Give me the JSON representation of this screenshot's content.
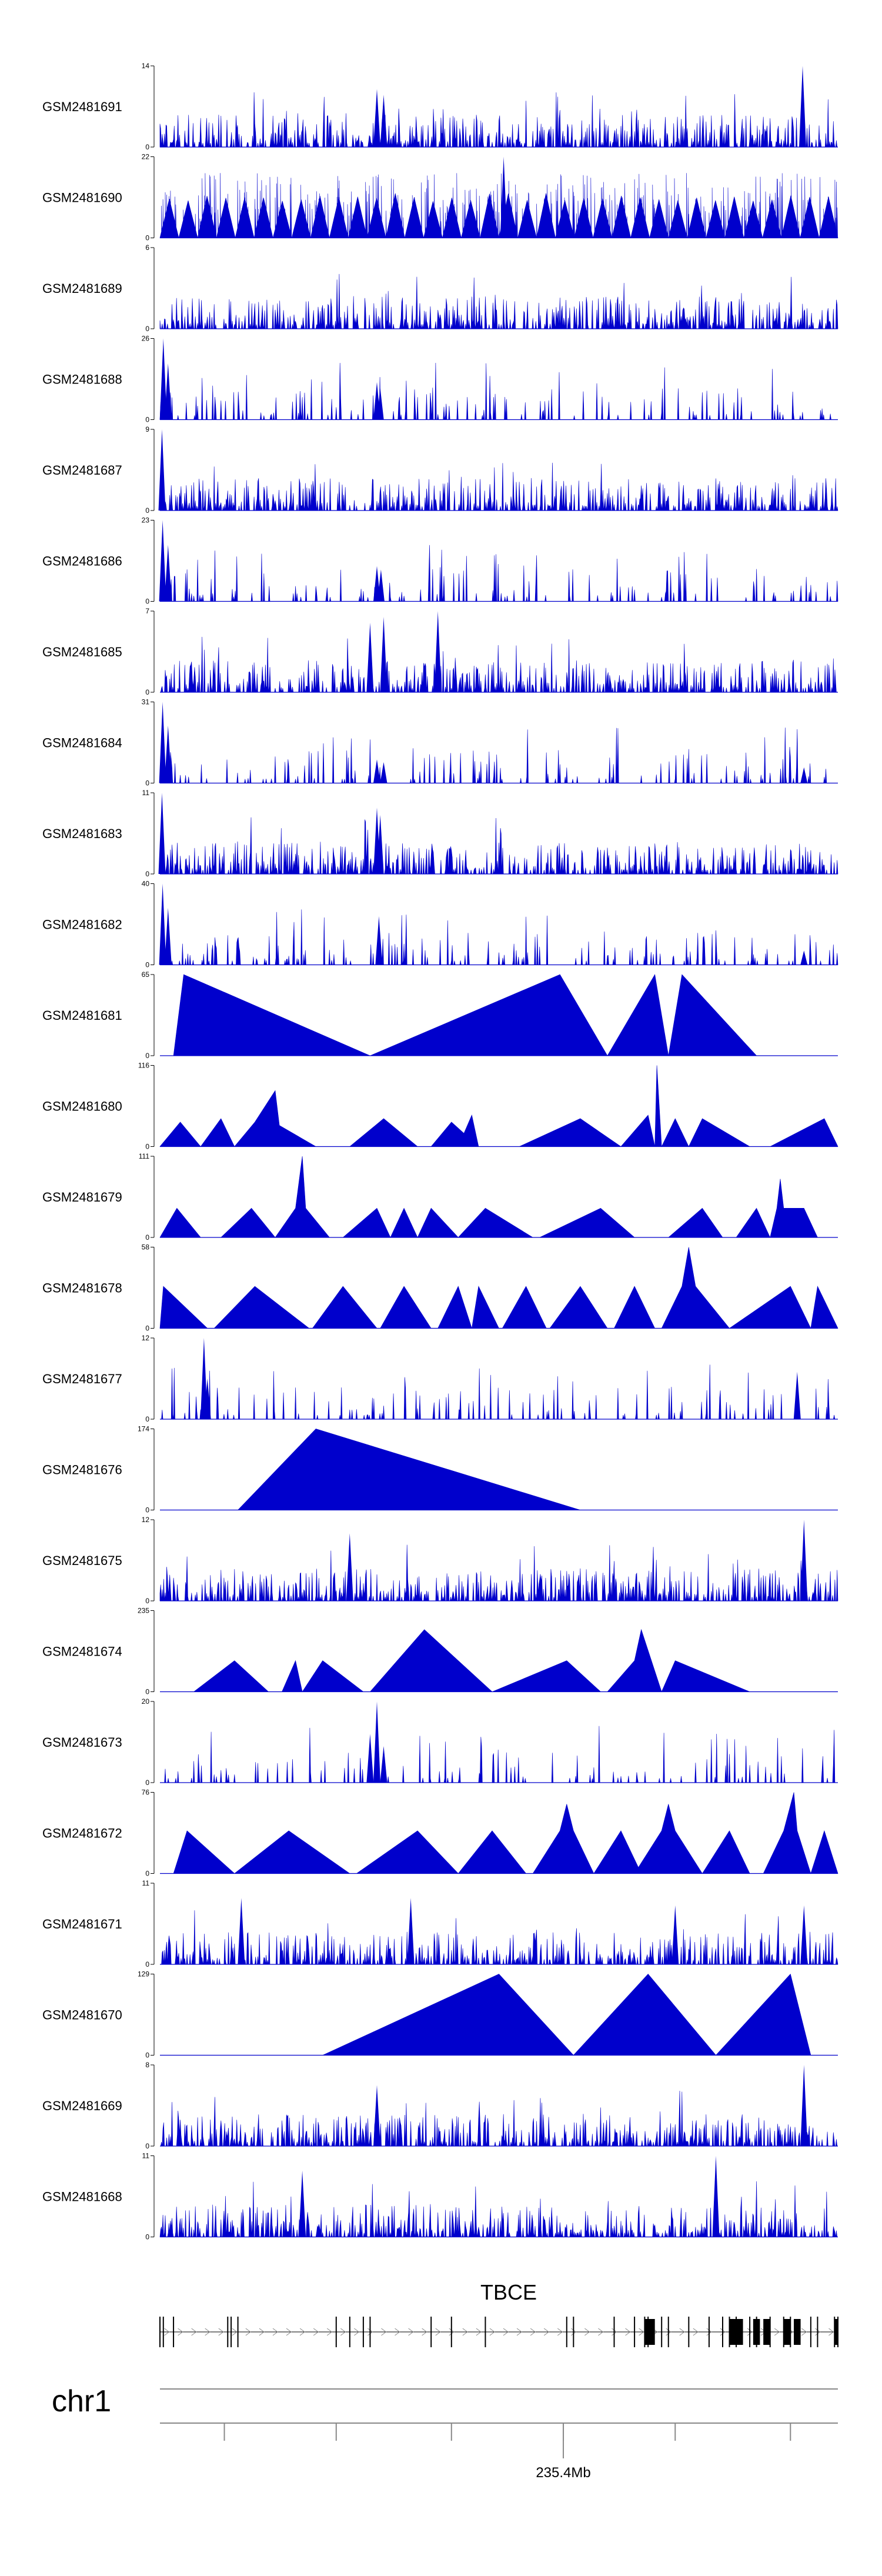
{
  "chart_data": {
    "type": "area",
    "title": "",
    "colors": {
      "signal": "#0000cc",
      "axis": "#000000",
      "gene": "#000000"
    },
    "tracks": [
      {
        "name": "GSM2481691",
        "max": 14,
        "min": 0,
        "pattern": "dense",
        "peaks": [
          [
            0.32,
            10
          ],
          [
            0.33,
            9
          ],
          [
            0.948,
            14
          ]
        ]
      },
      {
        "name": "GSM2481690",
        "max": 22,
        "min": 0,
        "pattern": "triangles",
        "peaks": [
          [
            0.507,
            22
          ]
        ]
      },
      {
        "name": "GSM2481689",
        "max": 6,
        "min": 0,
        "pattern": "dense",
        "peaks": []
      },
      {
        "name": "GSM2481688",
        "max": 26,
        "min": 0,
        "pattern": "sparse",
        "peaks": [
          [
            0.005,
            26
          ],
          [
            0.012,
            18
          ],
          [
            0.32,
            12
          ],
          [
            0.325,
            10
          ]
        ]
      },
      {
        "name": "GSM2481687",
        "max": 9,
        "min": 0,
        "pattern": "dense",
        "peaks": [
          [
            0.003,
            9
          ]
        ]
      },
      {
        "name": "GSM2481686",
        "max": 23,
        "min": 0,
        "pattern": "sparse",
        "peaks": [
          [
            0.004,
            23
          ],
          [
            0.012,
            16
          ],
          [
            0.32,
            10
          ],
          [
            0.326,
            9
          ]
        ]
      },
      {
        "name": "GSM2481685",
        "max": 7,
        "min": 0,
        "pattern": "dense",
        "peaks": [
          [
            0.31,
            6
          ],
          [
            0.33,
            6.5
          ],
          [
            0.41,
            7
          ]
        ]
      },
      {
        "name": "GSM2481684",
        "max": 31,
        "min": 0,
        "pattern": "sparse",
        "peaks": [
          [
            0.004,
            31
          ],
          [
            0.012,
            22
          ],
          [
            0.32,
            9
          ],
          [
            0.33,
            8
          ],
          [
            0.95,
            6
          ]
        ]
      },
      {
        "name": "GSM2481683",
        "max": 11,
        "min": 0,
        "pattern": "dense",
        "peaks": [
          [
            0.003,
            11
          ],
          [
            0.32,
            9
          ],
          [
            0.325,
            8
          ]
        ]
      },
      {
        "name": "GSM2481682",
        "max": 40,
        "min": 0,
        "pattern": "sparse",
        "peaks": [
          [
            0.004,
            40
          ],
          [
            0.012,
            28
          ],
          [
            0.323,
            24
          ],
          [
            0.95,
            7
          ]
        ]
      },
      {
        "name": "GSM2481681",
        "max": 65,
        "min": 0,
        "pattern": "poly",
        "points": [
          [
            0.0,
            0
          ],
          [
            0.02,
            0
          ],
          [
            0.035,
            65
          ],
          [
            0.31,
            0
          ],
          [
            0.59,
            65
          ],
          [
            0.66,
            0
          ],
          [
            0.73,
            65
          ],
          [
            0.75,
            0
          ],
          [
            0.77,
            65
          ],
          [
            0.88,
            0
          ]
        ]
      },
      {
        "name": "GSM2481680",
        "max": 116,
        "min": 0,
        "pattern": "poly",
        "points": [
          [
            0.0,
            0
          ],
          [
            0.0,
            0
          ],
          [
            0.03,
            35
          ],
          [
            0.06,
            0
          ],
          [
            0.09,
            40
          ],
          [
            0.11,
            0
          ],
          [
            0.14,
            35
          ],
          [
            0.17,
            80
          ],
          [
            0.18,
            0
          ],
          [
            0.18,
            0
          ],
          [
            0.145,
            0
          ],
          [
            0.17,
            80
          ],
          [
            0.145,
            0
          ],
          [
            0.14,
            35
          ],
          [
            0.145,
            0
          ],
          [
            0.18,
            0
          ],
          [
            0.15,
            45
          ],
          [
            0.23,
            0
          ],
          [
            0.28,
            0
          ],
          [
            0.33,
            40
          ],
          [
            0.38,
            0
          ],
          [
            0.4,
            0
          ],
          [
            0.43,
            35
          ],
          [
            0.45,
            0
          ],
          [
            0.43,
            35
          ],
          [
            0.41,
            0
          ],
          [
            0.43,
            35
          ],
          [
            0.47,
            0
          ],
          [
            0.47,
            0
          ],
          [
            0.44,
            0
          ],
          [
            0.45,
            0
          ],
          [
            0.47,
            0
          ],
          [
            0.47,
            0
          ],
          [
            0.41,
            0
          ],
          [
            0.43,
            35
          ],
          [
            0.41,
            0
          ],
          [
            0.44,
            0
          ],
          [
            0.46,
            45
          ],
          [
            0.47,
            0
          ],
          [
            0.53,
            0
          ],
          [
            0.62,
            40
          ],
          [
            0.68,
            0
          ],
          [
            0.72,
            45
          ],
          [
            0.73,
            0
          ],
          [
            0.733,
            116
          ],
          [
            0.74,
            0
          ],
          [
            0.76,
            40
          ],
          [
            0.78,
            0
          ],
          [
            0.8,
            40
          ],
          [
            0.87,
            0
          ],
          [
            0.9,
            0
          ],
          [
            0.98,
            40
          ],
          [
            1.0,
            0
          ]
        ]
      },
      {
        "name": "GSM2481679",
        "max": 111,
        "min": 0,
        "pattern": "poly",
        "points": [
          [
            0.0,
            0
          ],
          [
            0.025,
            40
          ],
          [
            0.06,
            0
          ],
          [
            0.09,
            0
          ],
          [
            0.135,
            40
          ],
          [
            0.17,
            0
          ],
          [
            0.2,
            40
          ],
          [
            0.21,
            111
          ],
          [
            0.215,
            40
          ],
          [
            0.25,
            0
          ],
          [
            0.27,
            0
          ],
          [
            0.32,
            40
          ],
          [
            0.34,
            0
          ],
          [
            0.36,
            40
          ],
          [
            0.38,
            0
          ],
          [
            0.4,
            40
          ],
          [
            0.44,
            0
          ],
          [
            0.44,
            0
          ],
          [
            0.48,
            40
          ],
          [
            0.55,
            0
          ],
          [
            0.56,
            0
          ],
          [
            0.65,
            40
          ],
          [
            0.7,
            0
          ],
          [
            0.75,
            0
          ],
          [
            0.8,
            40
          ],
          [
            0.83,
            0
          ],
          [
            0.85,
            0
          ],
          [
            0.88,
            40
          ],
          [
            0.9,
            0
          ],
          [
            0.91,
            40
          ],
          [
            0.915,
            80
          ],
          [
            0.92,
            40
          ],
          [
            0.95,
            40
          ],
          [
            0.97,
            0
          ]
        ]
      },
      {
        "name": "GSM2481678",
        "max": 58,
        "min": 0,
        "pattern": "poly",
        "points": [
          [
            0.0,
            0
          ],
          [
            0.005,
            30
          ],
          [
            0.07,
            0
          ],
          [
            0.08,
            0
          ],
          [
            0.14,
            30
          ],
          [
            0.22,
            0
          ],
          [
            0.225,
            0
          ],
          [
            0.27,
            30
          ],
          [
            0.32,
            0
          ],
          [
            0.325,
            0
          ],
          [
            0.36,
            30
          ],
          [
            0.4,
            0
          ],
          [
            0.41,
            0
          ],
          [
            0.44,
            30
          ],
          [
            0.46,
            0
          ],
          [
            0.47,
            30
          ],
          [
            0.5,
            0
          ],
          [
            0.505,
            0
          ],
          [
            0.54,
            30
          ],
          [
            0.57,
            0
          ],
          [
            0.575,
            0
          ],
          [
            0.62,
            30
          ],
          [
            0.66,
            0
          ],
          [
            0.67,
            0
          ],
          [
            0.7,
            30
          ],
          [
            0.73,
            0
          ],
          [
            0.74,
            0
          ],
          [
            0.77,
            30
          ],
          [
            0.78,
            58
          ],
          [
            0.79,
            30
          ],
          [
            0.84,
            0
          ],
          [
            0.84,
            0
          ],
          [
            0.93,
            30
          ],
          [
            0.96,
            0
          ],
          [
            0.97,
            30
          ],
          [
            1.0,
            0
          ]
        ]
      },
      {
        "name": "GSM2481677",
        "max": 12,
        "min": 0,
        "pattern": "sparse",
        "peaks": [
          [
            0.065,
            12
          ],
          [
            0.07,
            6
          ],
          [
            0.94,
            7
          ]
        ]
      },
      {
        "name": "GSM2481676",
        "max": 174,
        "min": 0,
        "pattern": "poly",
        "points": [
          [
            0.0,
            0
          ],
          [
            0.115,
            0
          ],
          [
            0.23,
            174
          ],
          [
            0.62,
            0
          ],
          [
            1.0,
            0
          ]
        ]
      },
      {
        "name": "GSM2481675",
        "max": 12,
        "min": 0,
        "pattern": "dense",
        "peaks": [
          [
            0.28,
            10
          ],
          [
            0.95,
            12
          ]
        ]
      },
      {
        "name": "GSM2481674",
        "max": 235,
        "min": 0,
        "pattern": "poly",
        "points": [
          [
            0.0,
            0
          ],
          [
            0.05,
            0
          ],
          [
            0.11,
            90
          ],
          [
            0.16,
            0
          ],
          [
            0.18,
            0
          ],
          [
            0.2,
            90
          ],
          [
            0.21,
            0
          ],
          [
            0.21,
            0
          ],
          [
            0.24,
            90
          ],
          [
            0.3,
            0
          ],
          [
            0.31,
            0
          ],
          [
            0.39,
            180
          ],
          [
            0.49,
            0
          ],
          [
            0.49,
            0
          ],
          [
            0.6,
            90
          ],
          [
            0.65,
            0
          ],
          [
            0.66,
            0
          ],
          [
            0.7,
            90
          ],
          [
            0.71,
            180
          ],
          [
            0.74,
            0
          ],
          [
            0.76,
            90
          ],
          [
            0.87,
            0
          ],
          [
            1.0,
            0
          ]
        ]
      },
      {
        "name": "GSM2481673",
        "max": 20,
        "min": 0,
        "pattern": "sparse",
        "peaks": [
          [
            0.32,
            20
          ],
          [
            0.31,
            12
          ],
          [
            0.33,
            9
          ]
        ]
      },
      {
        "name": "GSM2481672",
        "max": 76,
        "min": 0,
        "pattern": "poly",
        "points": [
          [
            0.0,
            0
          ],
          [
            0.02,
            0
          ],
          [
            0.04,
            40
          ],
          [
            0.11,
            0
          ],
          [
            0.11,
            0
          ],
          [
            0.19,
            40
          ],
          [
            0.28,
            0
          ],
          [
            0.29,
            0
          ],
          [
            0.38,
            40
          ],
          [
            0.44,
            0
          ],
          [
            0.44,
            0
          ],
          [
            0.49,
            40
          ],
          [
            0.54,
            0
          ],
          [
            0.55,
            0
          ],
          [
            0.59,
            40
          ],
          [
            0.6,
            65
          ],
          [
            0.61,
            40
          ],
          [
            0.64,
            0
          ],
          [
            0.64,
            0
          ],
          [
            0.68,
            40
          ],
          [
            0.71,
            0
          ],
          [
            0.7,
            0
          ],
          [
            0.74,
            40
          ],
          [
            0.75,
            65
          ],
          [
            0.76,
            40
          ],
          [
            0.8,
            0
          ],
          [
            0.84,
            40
          ],
          [
            0.87,
            0
          ],
          [
            0.89,
            0
          ],
          [
            0.92,
            40
          ],
          [
            0.935,
            76
          ],
          [
            0.94,
            40
          ],
          [
            0.96,
            0
          ],
          [
            0.98,
            40
          ],
          [
            1.0,
            0
          ]
        ]
      },
      {
        "name": "GSM2481671",
        "max": 11,
        "min": 0,
        "pattern": "dense",
        "peaks": [
          [
            0.12,
            9
          ],
          [
            0.37,
            9
          ],
          [
            0.76,
            8
          ],
          [
            0.95,
            8
          ]
        ]
      },
      {
        "name": "GSM2481670",
        "max": 129,
        "min": 0,
        "pattern": "poly",
        "points": [
          [
            0.0,
            0
          ],
          [
            0.24,
            0
          ],
          [
            0.5,
            129
          ],
          [
            0.61,
            0
          ],
          [
            0.72,
            129
          ],
          [
            0.82,
            0
          ],
          [
            0.93,
            129
          ],
          [
            0.96,
            0
          ],
          [
            1.0,
            0
          ]
        ]
      },
      {
        "name": "GSM2481669",
        "max": 8,
        "min": 0,
        "pattern": "dense",
        "peaks": [
          [
            0.95,
            8
          ],
          [
            0.32,
            6
          ]
        ]
      },
      {
        "name": "GSM2481668",
        "max": 11,
        "min": 0,
        "pattern": "dense",
        "peaks": [
          [
            0.21,
            9
          ],
          [
            0.82,
            11
          ]
        ]
      }
    ],
    "gene": {
      "name": "TBCE",
      "exons": [
        0.0,
        0.005,
        0.02,
        0.1,
        0.105,
        0.115,
        0.26,
        0.28,
        0.3,
        0.31,
        0.4,
        0.43,
        0.48,
        0.6,
        0.61,
        0.67,
        0.7,
        0.715,
        0.72,
        0.74,
        0.75,
        0.78,
        0.81,
        0.83,
        0.84,
        0.85,
        0.87,
        0.88,
        0.9,
        0.92,
        0.93,
        0.96,
        0.97,
        0.995,
        1.0
      ],
      "thick_exons": [
        [
          0.715,
          0.73
        ],
        [
          0.84,
          0.86
        ],
        [
          0.875,
          0.885
        ],
        [
          0.89,
          0.9
        ],
        [
          0.92,
          0.93
        ],
        [
          0.935,
          0.945
        ],
        [
          0.995,
          1.0
        ]
      ]
    },
    "chromosome": "chr1",
    "axis": {
      "tick_positions": [
        0.095,
        0.26,
        0.43,
        0.595,
        0.76,
        0.93
      ],
      "labeled_tick": {
        "position": 0.595,
        "label": "235.4Mb"
      }
    }
  }
}
